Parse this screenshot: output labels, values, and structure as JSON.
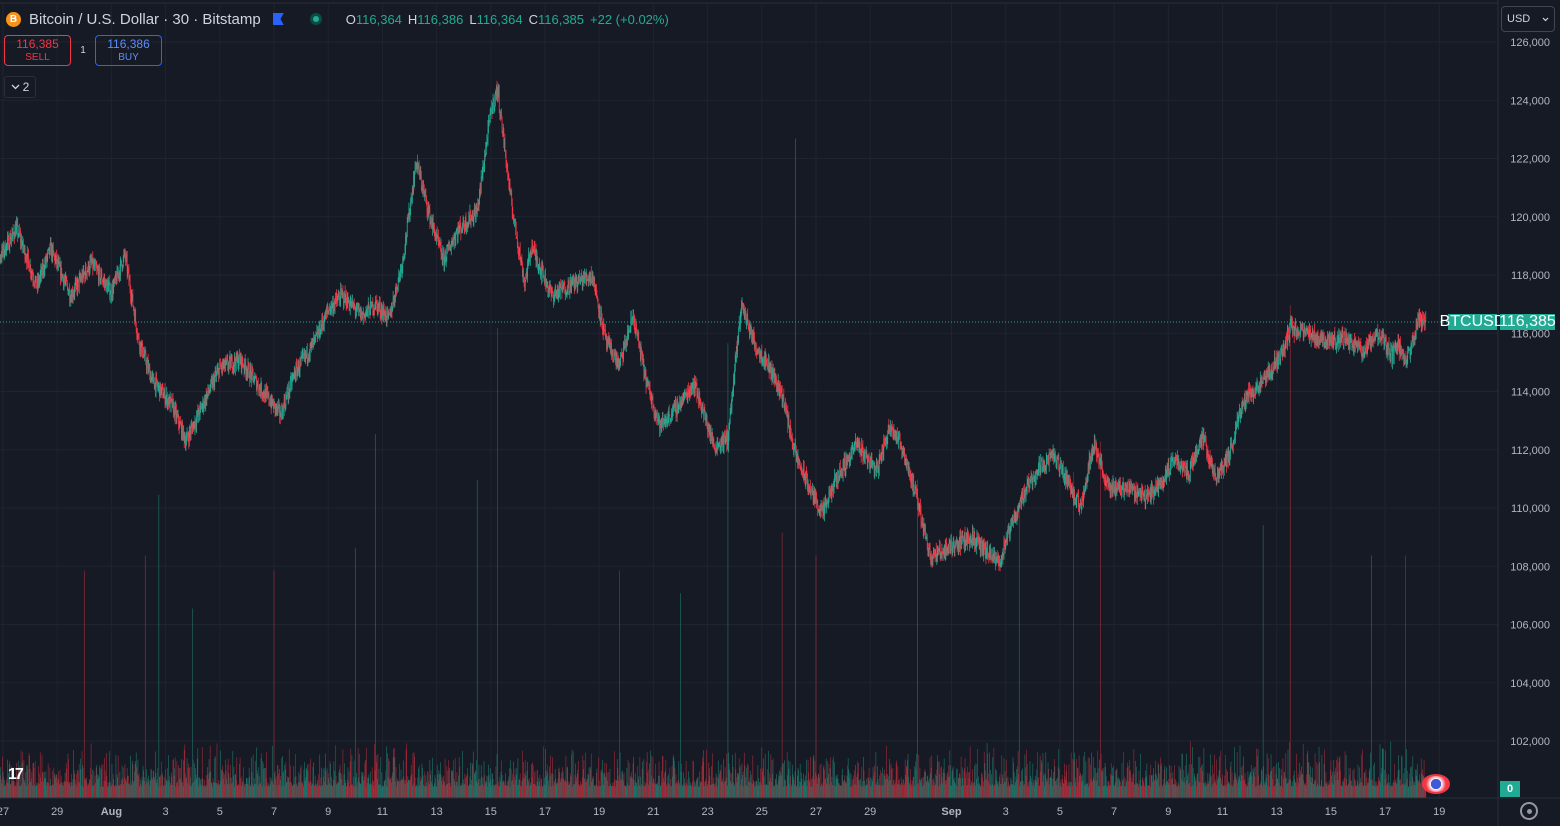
{
  "header": {
    "symbol_title": "Bitcoin / U.S. Dollar · 30 · Bitstamp",
    "coin_glyph": "B",
    "ohlc": {
      "o_label": "O",
      "o_value": "116,364",
      "h_label": "H",
      "h_value": "116,386",
      "l_label": "L",
      "l_value": "116,364",
      "c_label": "C",
      "c_value": "116,385",
      "change": "+22 (+0.02%)"
    }
  },
  "trade": {
    "sell_price": "116,385",
    "sell_label": "SELL",
    "spread": "1",
    "buy_price": "116,386",
    "buy_label": "BUY"
  },
  "indicators_toggle": {
    "count": "2",
    "icon": "chevron-down-icon"
  },
  "currency_select": {
    "value": "USD",
    "icon": "chevron-down-icon"
  },
  "price_tag": {
    "symbol": "BTCUSD",
    "value": "116,385"
  },
  "volume_tag": "0",
  "colors": {
    "up": "#22ab94",
    "down": "#f23645",
    "background": "#161a25",
    "text": "#d1d4dc",
    "grid": "#1f2430"
  },
  "chart_data": {
    "type": "candlestick",
    "title": "Bitcoin / U.S. Dollar · 30 · Bitstamp",
    "ylim": [
      100000,
      126500
    ],
    "y_ticks": [
      "102,000",
      "104,000",
      "106,000",
      "108,000",
      "110,000",
      "112,000",
      "114,000",
      "116,000",
      "118,000",
      "120,000",
      "122,000",
      "124,000",
      "126,000"
    ],
    "x_ticks": [
      {
        "label": "27",
        "day": 27
      },
      {
        "label": "29",
        "day": 29
      },
      {
        "label": "Aug",
        "day": 31
      },
      {
        "label": "3",
        "day": 33
      },
      {
        "label": "5",
        "day": 35
      },
      {
        "label": "7",
        "day": 37
      },
      {
        "label": "9",
        "day": 39
      },
      {
        "label": "11",
        "day": 41
      },
      {
        "label": "13",
        "day": 43
      },
      {
        "label": "15",
        "day": 45
      },
      {
        "label": "17",
        "day": 47
      },
      {
        "label": "19",
        "day": 49
      },
      {
        "label": "21",
        "day": 51
      },
      {
        "label": "23",
        "day": 53
      },
      {
        "label": "25",
        "day": 55
      },
      {
        "label": "27",
        "day": 57
      },
      {
        "label": "29",
        "day": 59
      },
      {
        "label": "Sep",
        "day": 62
      },
      {
        "label": "3",
        "day": 64
      },
      {
        "label": "5",
        "day": 66
      },
      {
        "label": "7",
        "day": 68
      },
      {
        "label": "9",
        "day": 70
      },
      {
        "label": "11",
        "day": 72
      },
      {
        "label": "13",
        "day": 74
      },
      {
        "label": "15",
        "day": 76
      },
      {
        "label": "17",
        "day": 78
      },
      {
        "label": "19",
        "day": 80
      }
    ],
    "last_price": 116385,
    "price_path": [
      {
        "t": "Jul 26 12:00",
        "p": 118000
      },
      {
        "t": "Jul 27 12:00",
        "p": 119600
      },
      {
        "t": "Jul 28 06:00",
        "p": 117600
      },
      {
        "t": "Jul 28 18:00",
        "p": 118900
      },
      {
        "t": "Jul 29 12:00",
        "p": 117300
      },
      {
        "t": "Jul 30 06:00",
        "p": 118400
      },
      {
        "t": "Jul 31 00:00",
        "p": 117400
      },
      {
        "t": "Jul 31 12:00",
        "p": 118700
      },
      {
        "t": "Aug 1 00:00",
        "p": 115800
      },
      {
        "t": "Aug 1 12:00",
        "p": 114400
      },
      {
        "t": "Aug 2 06:00",
        "p": 113500
      },
      {
        "t": "Aug 2 18:00",
        "p": 112300
      },
      {
        "t": "Aug 3 12:00",
        "p": 113800
      },
      {
        "t": "Aug 4 00:00",
        "p": 114800
      },
      {
        "t": "Aug 4 18:00",
        "p": 115100
      },
      {
        "t": "Aug 5 12:00",
        "p": 114100
      },
      {
        "t": "Aug 6 06:00",
        "p": 113200
      },
      {
        "t": "Aug 6 18:00",
        "p": 114600
      },
      {
        "t": "Aug 7 12:00",
        "p": 115700
      },
      {
        "t": "Aug 8 00:00",
        "p": 116800
      },
      {
        "t": "Aug 8 12:00",
        "p": 117300
      },
      {
        "t": "Aug 9 06:00",
        "p": 116600
      },
      {
        "t": "Aug 9 18:00",
        "p": 117000
      },
      {
        "t": "Aug 10 06:00",
        "p": 116500
      },
      {
        "t": "Aug 10 18:00",
        "p": 118500
      },
      {
        "t": "Aug 11 06:00",
        "p": 121900
      },
      {
        "t": "Aug 11 18:00",
        "p": 120000
      },
      {
        "t": "Aug 12 06:00",
        "p": 118500
      },
      {
        "t": "Aug 12 18:00",
        "p": 119500
      },
      {
        "t": "Aug 13 12:00",
        "p": 120200
      },
      {
        "t": "Aug 14 00:00",
        "p": 123600
      },
      {
        "t": "Aug 14 06:00",
        "p": 124400
      },
      {
        "t": "Aug 14 18:00",
        "p": 120500
      },
      {
        "t": "Aug 15 06:00",
        "p": 117700
      },
      {
        "t": "Aug 15 12:00",
        "p": 119000
      },
      {
        "t": "Aug 16 06:00",
        "p": 117300
      },
      {
        "t": "Aug 17 00:00",
        "p": 117700
      },
      {
        "t": "Aug 17 18:00",
        "p": 118000
      },
      {
        "t": "Aug 18 06:00",
        "p": 115700
      },
      {
        "t": "Aug 18 18:00",
        "p": 114900
      },
      {
        "t": "Aug 19 06:00",
        "p": 116600
      },
      {
        "t": "Aug 19 18:00",
        "p": 114300
      },
      {
        "t": "Aug 20 06:00",
        "p": 112800
      },
      {
        "t": "Aug 21 00:00",
        "p": 113600
      },
      {
        "t": "Aug 21 12:00",
        "p": 114300
      },
      {
        "t": "Aug 22 06:00",
        "p": 112100
      },
      {
        "t": "Aug 22 18:00",
        "p": 112400
      },
      {
        "t": "Aug 23 06:00",
        "p": 117000
      },
      {
        "t": "Aug 23 18:00",
        "p": 115600
      },
      {
        "t": "Aug 24 06:00",
        "p": 114900
      },
      {
        "t": "Aug 24 18:00",
        "p": 113900
      },
      {
        "t": "Aug 25 06:00",
        "p": 111800
      },
      {
        "t": "Aug 25 18:00",
        "p": 110700
      },
      {
        "t": "Aug 26 06:00",
        "p": 109800
      },
      {
        "t": "Aug 26 18:00",
        "p": 111000
      },
      {
        "t": "Aug 27 12:00",
        "p": 112200
      },
      {
        "t": "Aug 28 06:00",
        "p": 111300
      },
      {
        "t": "Aug 28 18:00",
        "p": 112900
      },
      {
        "t": "Aug 29 06:00",
        "p": 111900
      },
      {
        "t": "Aug 29 18:00",
        "p": 110200
      },
      {
        "t": "Aug 30 06:00",
        "p": 108300
      },
      {
        "t": "Aug 31 00:00",
        "p": 108700
      },
      {
        "t": "Aug 31 18:00",
        "p": 109000
      },
      {
        "t": "Sep 1 06:00",
        "p": 108500
      },
      {
        "t": "Sep 1 18:00",
        "p": 108100
      },
      {
        "t": "Sep 2 06:00",
        "p": 109500
      },
      {
        "t": "Sep 2 18:00",
        "p": 110700
      },
      {
        "t": "Sep 3 06:00",
        "p": 111400
      },
      {
        "t": "Sep 3 18:00",
        "p": 111800
      },
      {
        "t": "Sep 4 06:00",
        "p": 111000
      },
      {
        "t": "Sep 4 18:00",
        "p": 110000
      },
      {
        "t": "Sep 5 06:00",
        "p": 112300
      },
      {
        "t": "Sep 5 18:00",
        "p": 110700
      },
      {
        "t": "Sep 6 12:00",
        "p": 110700
      },
      {
        "t": "Sep 7 06:00",
        "p": 110400
      },
      {
        "t": "Sep 7 18:00",
        "p": 110900
      },
      {
        "t": "Sep 8 06:00",
        "p": 111700
      },
      {
        "t": "Sep 8 18:00",
        "p": 111200
      },
      {
        "t": "Sep 9 06:00",
        "p": 112500
      },
      {
        "t": "Sep 9 18:00",
        "p": 111000
      },
      {
        "t": "Sep 10 06:00",
        "p": 111800
      },
      {
        "t": "Sep 10 18:00",
        "p": 113700
      },
      {
        "t": "Sep 11 12:00",
        "p": 114300
      },
      {
        "t": "Sep 12 06:00",
        "p": 115400
      },
      {
        "t": "Sep 12 12:00",
        "p": 116200
      },
      {
        "t": "Sep 13 00:00",
        "p": 116000
      },
      {
        "t": "Sep 13 18:00",
        "p": 115800
      },
      {
        "t": "Sep 14 12:00",
        "p": 115800
      },
      {
        "t": "Sep 15 06:00",
        "p": 115400
      },
      {
        "t": "Sep 15 18:00",
        "p": 116000
      },
      {
        "t": "Sep 16 06:00",
        "p": 115200
      },
      {
        "t": "Sep 16 12:00",
        "p": 115600
      },
      {
        "t": "Sep 16 18:00",
        "p": 114900
      },
      {
        "t": "Sep 17 06:00",
        "p": 116500
      },
      {
        "t": "Sep 17 12:00",
        "p": 116400
      }
    ],
    "volume_ylim": [
      0,
      1
    ],
    "volume_spikes": [
      {
        "t": "Jul 30 00:00",
        "v": 0.3
      },
      {
        "t": "Aug 1 06:00",
        "v": 0.32
      },
      {
        "t": "Aug 1 18:00",
        "v": 0.4
      },
      {
        "t": "Aug 3 00:00",
        "v": 0.25
      },
      {
        "t": "Aug 6 00:00",
        "v": 0.3
      },
      {
        "t": "Aug 9 00:00",
        "v": 0.33
      },
      {
        "t": "Aug 9 18:00",
        "v": 0.48
      },
      {
        "t": "Aug 13 12:00",
        "v": 0.42
      },
      {
        "t": "Aug 14 06:00",
        "v": 0.62
      },
      {
        "t": "Aug 18 18:00",
        "v": 0.3
      },
      {
        "t": "Aug 21 00:00",
        "v": 0.27
      },
      {
        "t": "Aug 22 18:00",
        "v": 0.6
      },
      {
        "t": "Aug 24 18:00",
        "v": 0.35
      },
      {
        "t": "Aug 25 06:00",
        "v": 0.87
      },
      {
        "t": "Aug 26 00:00",
        "v": 0.32
      },
      {
        "t": "Aug 29 18:00",
        "v": 0.42
      },
      {
        "t": "Sep 2 12:00",
        "v": 0.38
      },
      {
        "t": "Sep 4 12:00",
        "v": 0.43
      },
      {
        "t": "Sep 5 12:00",
        "v": 0.47
      },
      {
        "t": "Sep 11 12:00",
        "v": 0.36
      },
      {
        "t": "Sep 12 12:00",
        "v": 0.65
      },
      {
        "t": "Sep 15 12:00",
        "v": 0.32
      },
      {
        "t": "Sep 16 18:00",
        "v": 0.32
      }
    ]
  }
}
